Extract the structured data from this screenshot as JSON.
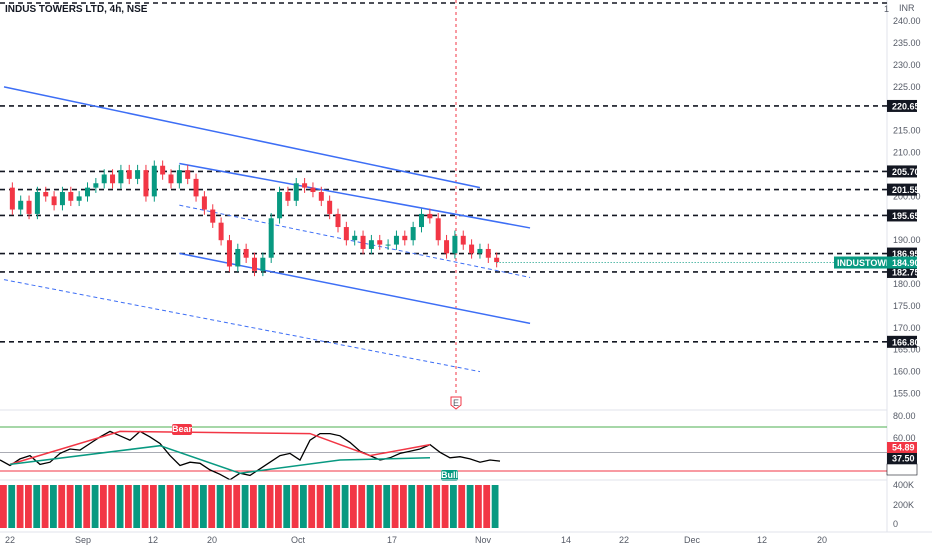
{
  "header": {
    "title": "INDUS TOWERS LTD, 4h, NSE",
    "currency": "INR",
    "corner_mark": "1"
  },
  "chart_data": {
    "type": "candlestick",
    "title": "INDUS TOWERS LTD, 4h, NSE",
    "currency": "INR",
    "ylim": [
      152,
      244
    ],
    "y_ticks": [
      240,
      235,
      230,
      225,
      215,
      210,
      200,
      190,
      180,
      175,
      170,
      165,
      160,
      155
    ],
    "x_ticks": [
      "22",
      "Sep",
      "12",
      "20",
      "Oct",
      "17",
      "Nov",
      "14",
      "22",
      "Dec",
      "12",
      "20"
    ],
    "horizontal_levels": [
      220.65,
      205.7,
      201.55,
      195.65,
      186.95,
      182.75,
      166.8
    ],
    "last_price": {
      "label": "INDUSTOWER",
      "value": 184.9,
      "color": "#089981"
    },
    "price_path": [
      202,
      197,
      199,
      196,
      201,
      200,
      198,
      201,
      199,
      200,
      202,
      203,
      205,
      203,
      206,
      204,
      206,
      200,
      207,
      205,
      203,
      206,
      204,
      200,
      197,
      194,
      190,
      184,
      188,
      186,
      183,
      186,
      195,
      201,
      199,
      203,
      202,
      201,
      199,
      196,
      193,
      190,
      191,
      188,
      190,
      189,
      189,
      191,
      190,
      193,
      196,
      195,
      190,
      187,
      191,
      189,
      187,
      188,
      186,
      185
    ],
    "channels": [
      {
        "style": "solid",
        "color": "#3d6ef5",
        "points": [
          [
            0,
            225
          ],
          [
            57,
            202
          ]
        ]
      },
      {
        "style": "solid",
        "color": "#3d6ef5",
        "points": [
          [
            21,
            207.5
          ],
          [
            63,
            192.8
          ]
        ]
      },
      {
        "style": "solid",
        "color": "#3d6ef5",
        "points": [
          [
            21,
            187
          ],
          [
            63,
            171
          ]
        ]
      },
      {
        "style": "dashed",
        "color": "#3d6ef5",
        "points": [
          [
            21,
            198
          ],
          [
            63,
            181.5
          ]
        ]
      },
      {
        "style": "dashed",
        "color": "#3d6ef5",
        "points": [
          [
            0,
            181
          ],
          [
            57,
            160
          ]
        ]
      }
    ],
    "event_marker": {
      "label": "E",
      "color": "#f23645"
    },
    "oscillator": {
      "y_ticks": [
        80,
        60
      ],
      "levels": {
        "upper": 70,
        "lower": 30
      },
      "value_labels": [
        {
          "value": "54.89",
          "color": "#f23645"
        },
        {
          "value": "37.50",
          "color": "#ffffff"
        },
        {
          "value": "36.94",
          "color": "#131722"
        }
      ],
      "series": [
        {
          "name": "",
          "color": "#000000",
          "values": [
            40,
            35,
            41,
            44,
            36,
            38,
            46,
            50,
            49,
            55,
            61,
            66,
            62,
            58,
            66,
            61,
            55,
            44,
            35,
            38,
            37,
            31,
            27,
            22,
            28,
            26,
            32,
            38,
            44,
            46,
            40,
            58,
            64,
            64,
            62,
            56,
            48,
            44,
            40,
            42,
            46,
            48,
            50,
            54,
            47,
            42,
            43,
            41,
            38,
            40,
            39
          ]
        }
      ],
      "divergences": [
        {
          "label": "Bear",
          "color": "#f23645"
        },
        {
          "label": "Bull",
          "color": "#089981"
        }
      ]
    },
    "volume": {
      "y_ticks": [
        "400K",
        "200K",
        "0"
      ],
      "colors": {
        "up": "#089981",
        "down": "#f23645"
      }
    }
  }
}
